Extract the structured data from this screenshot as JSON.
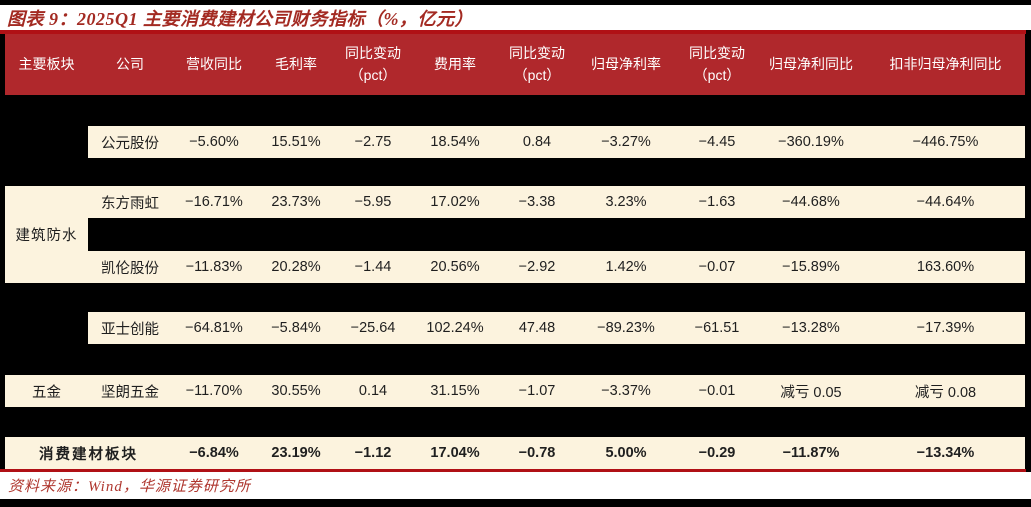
{
  "title": "图表 9：2025Q1 主要消费建材公司财务指标（%，亿元）",
  "source": "资料来源：Wind，华源证券研究所",
  "colors": {
    "page_bg": "#000000",
    "header_bg": "#B0282C",
    "row_bg": "#FCF3DE",
    "title_red": "#A32A22",
    "line_red": "#B01015",
    "source_red": "#AF372F",
    "cell_text": "#1F1F1F"
  },
  "table": {
    "headers": [
      "主要板块",
      "公司",
      "营收同比",
      "毛利率",
      "同比变动\n（pct）",
      "费用率",
      "同比变动\n（pct）",
      "归母净利率",
      "同比变动\n（pct）",
      "归母净利同比",
      "扣非归母净利同比"
    ],
    "sector_groups": [
      {
        "label": "建筑防水"
      },
      {
        "label": "五金"
      }
    ],
    "rows": [
      {
        "company": "公元股份",
        "values": [
          "−5.60%",
          "15.51%",
          "−2.75",
          "18.54%",
          "0.84",
          "−3.27%",
          "−4.45",
          "−360.19%",
          "−446.75%"
        ]
      },
      {
        "company": "东方雨虹",
        "values": [
          "−16.71%",
          "23.73%",
          "−5.95",
          "17.02%",
          "−3.38",
          "3.23%",
          "−1.63",
          "−44.68%",
          "−44.64%"
        ]
      },
      {
        "company": "凯伦股份",
        "values": [
          "−11.83%",
          "20.28%",
          "−1.44",
          "20.56%",
          "−2.92",
          "1.42%",
          "−0.07",
          "−15.89%",
          "163.60%"
        ]
      },
      {
        "company": "亚士创能",
        "values": [
          "−64.81%",
          "−5.84%",
          "−25.64",
          "102.24%",
          "47.48",
          "−89.23%",
          "−61.51",
          "−13.28%",
          "−17.39%"
        ]
      },
      {
        "company": "坚朗五金",
        "values": [
          "−11.70%",
          "30.55%",
          "0.14",
          "31.15%",
          "−1.07",
          "−3.37%",
          "−0.01",
          "减亏 0.05",
          "减亏 0.08"
        ]
      },
      {
        "label": "消费建材板块",
        "values": [
          "−6.84%",
          "23.19%",
          "−1.12",
          "17.04%",
          "−0.78",
          "5.00%",
          "−0.29",
          "−11.87%",
          "−13.34%"
        ]
      }
    ]
  }
}
